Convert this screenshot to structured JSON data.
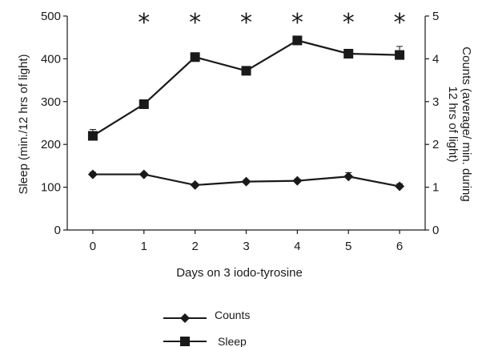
{
  "chart_data": {
    "type": "line",
    "xlabel": "Days on 3 iodo-tyrosine",
    "ylabel_left": "Sleep (min./12 hrs of light)",
    "ylabel_right_lines": [
      "Counts (average/ min. during",
      "12 hrs of light)"
    ],
    "x": [
      0,
      1,
      2,
      3,
      4,
      5,
      6
    ],
    "x_ticks": [
      "0",
      "1",
      "2",
      "3",
      "4",
      "5",
      "6"
    ],
    "xlim": [
      -0.5,
      6.5
    ],
    "ylim_left": [
      0,
      500
    ],
    "ylim_right": [
      0,
      5
    ],
    "left_ticks": [
      "0",
      "100",
      "200",
      "300",
      "400",
      "500"
    ],
    "right_ticks": [
      "0",
      "1",
      "2",
      "3",
      "4",
      "5"
    ],
    "significance_marker": "*",
    "significant_days": [
      1,
      2,
      3,
      4,
      5,
      6
    ],
    "series": [
      {
        "name": "Counts",
        "axis": "right",
        "marker": "diamond",
        "values": [
          1.3,
          1.3,
          1.05,
          1.13,
          1.15,
          1.25,
          1.02
        ],
        "errors": [
          0.05,
          0.04,
          0.04,
          0.03,
          0.04,
          0.09,
          0.06
        ]
      },
      {
        "name": "Sleep",
        "axis": "left",
        "marker": "square",
        "values": [
          220,
          294,
          404,
          372,
          443,
          412,
          409
        ],
        "errors": [
          15,
          10,
          10,
          8,
          10,
          9,
          20
        ]
      }
    ],
    "legend_position": "bottom-center",
    "grid": false
  }
}
